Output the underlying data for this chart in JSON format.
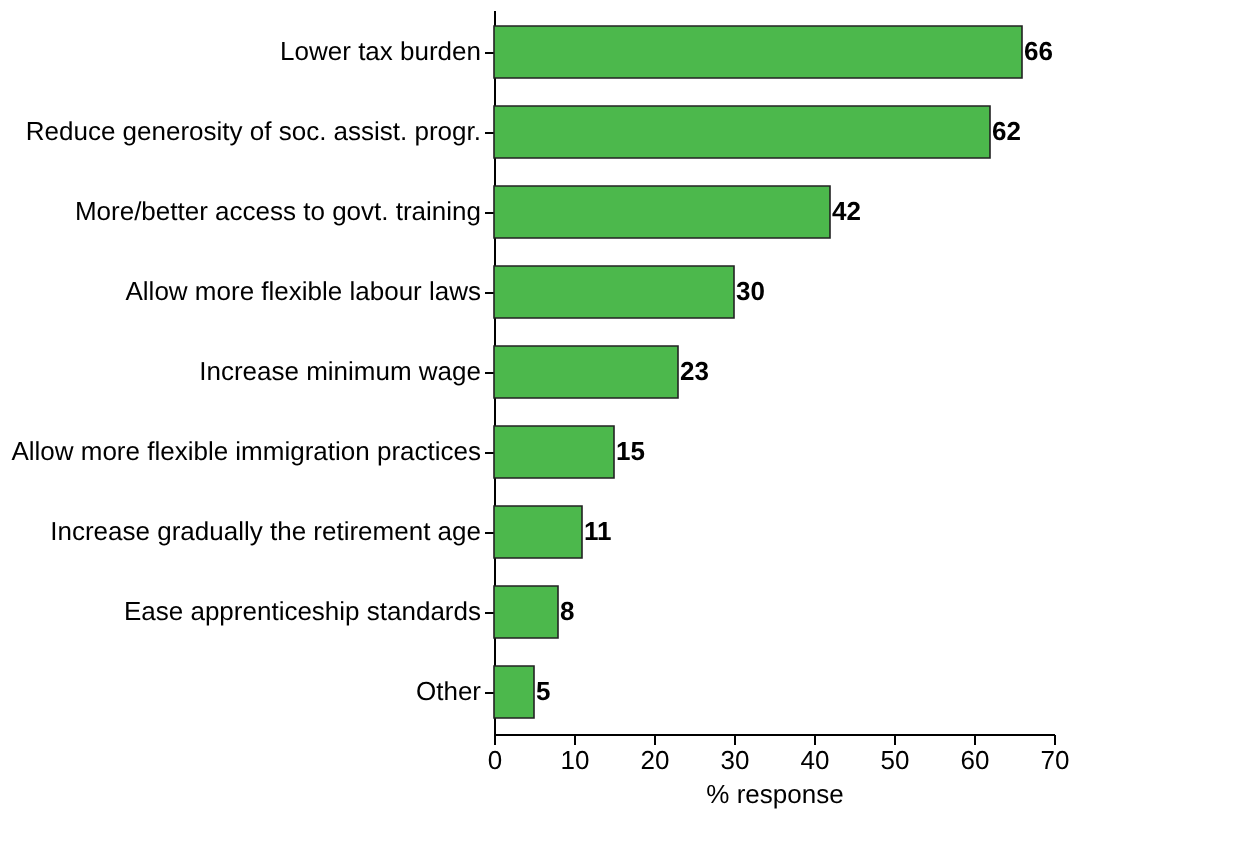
{
  "chart_data": {
    "type": "bar",
    "orientation": "horizontal",
    "xlabel": "% response",
    "categories": [
      "Lower tax burden",
      "Reduce generosity of soc. assist. progr.",
      "More/better access to govt. training",
      "Allow more flexible labour laws",
      "Increase minimum wage",
      "Allow more flexible immigration practices",
      "Increase gradually the retirement age",
      "Ease apprenticeship standards",
      "Other"
    ],
    "values": [
      66,
      62,
      42,
      30,
      23,
      15,
      11,
      8,
      5
    ],
    "color": "#4cb84c",
    "xlim": [
      0,
      70
    ],
    "xticks": [
      0,
      10,
      20,
      30,
      40,
      50,
      60,
      70
    ],
    "data_labels": true,
    "grid": false
  }
}
